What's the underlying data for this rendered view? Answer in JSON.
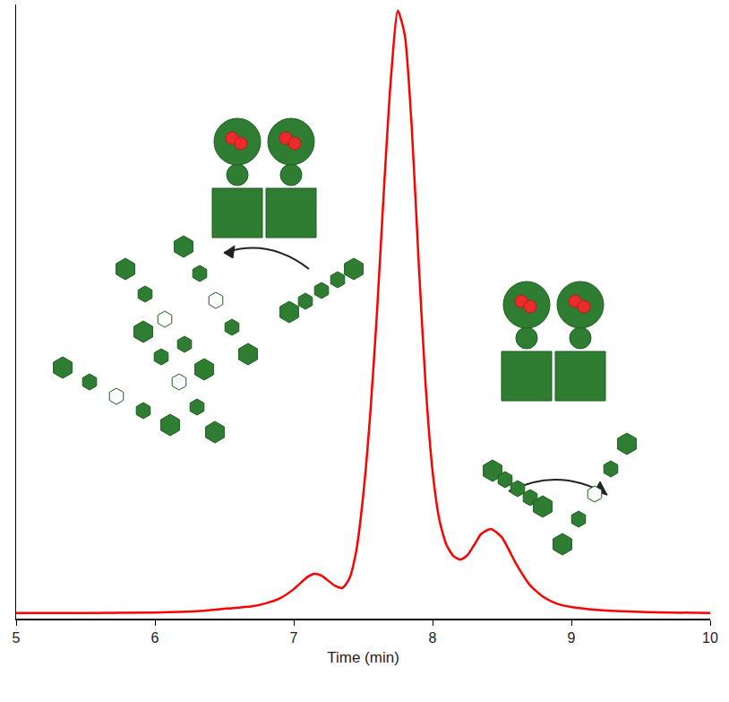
{
  "chart_data": {
    "type": "line",
    "x_label": "Time (min)",
    "x": [
      5.0,
      5.5,
      6.0,
      6.3,
      6.5,
      6.7,
      6.8,
      6.9,
      7.0,
      7.1,
      7.15,
      7.2,
      7.3,
      7.35,
      7.4,
      7.45,
      7.5,
      7.55,
      7.6,
      7.65,
      7.7,
      7.75,
      7.8,
      7.85,
      7.9,
      7.95,
      8.0,
      8.05,
      8.1,
      8.15,
      8.2,
      8.25,
      8.3,
      8.35,
      8.42,
      8.5,
      8.6,
      8.7,
      8.8,
      8.9,
      9.0,
      9.2,
      9.5,
      10.0
    ],
    "series": [
      {
        "color": "#ff0000",
        "values": [
          0.9,
          0.9,
          1.0,
          1.2,
          1.6,
          2.0,
          2.5,
          3.3,
          4.8,
          6.8,
          7.3,
          7.0,
          5.3,
          5.0,
          6.5,
          11,
          20,
          33,
          50,
          70,
          88,
          99,
          95,
          80,
          58,
          38,
          24,
          16,
          12,
          10.2,
          9.6,
          10.3,
          12,
          13.8,
          14.6,
          13.2,
          9,
          5.5,
          3.5,
          2.4,
          1.9,
          1.4,
          1.1,
          0.9
        ]
      }
    ],
    "xlim": [
      5,
      10
    ],
    "xticks": [
      5,
      6,
      7,
      8,
      9,
      10
    ],
    "ylim": [
      0,
      100
    ],
    "yticks": [],
    "tick_labels": "x",
    "grid": false
  }
}
